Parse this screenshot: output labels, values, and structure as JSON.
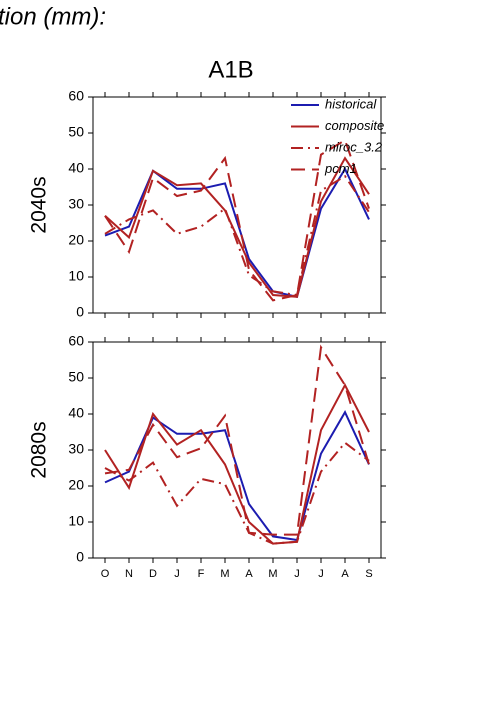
{
  "header": "tion (mm):",
  "chart_data": [
    {
      "type": "line",
      "title": "A1B",
      "ylabel": "2040s",
      "ylim": [
        0,
        60
      ],
      "yticks": [
        0,
        10,
        20,
        30,
        40,
        50,
        60
      ],
      "legend": "upper right",
      "series": [
        {
          "name": "historical",
          "color": "#1c1cb0",
          "dash": "solid",
          "values": [
            21.5,
            24,
            39.5,
            34.5,
            34.5,
            36,
            15,
            6,
            4.5,
            29,
            40,
            26
          ]
        },
        {
          "name": "composite",
          "color": "#b22222",
          "dash": "solid",
          "values": [
            27,
            21,
            39.5,
            35.5,
            36,
            28.5,
            14,
            5,
            4.5,
            31,
            43,
            33
          ]
        },
        {
          "name": "miroc_3.2",
          "color": "#b22222",
          "dash": "dashdot",
          "values": [
            22,
            26,
            28.5,
            22,
            24,
            29,
            10.5,
            6,
            5,
            34,
            38,
            28
          ]
        },
        {
          "name": "pcm1",
          "color": "#b22222",
          "dash": "dash",
          "values": [
            27,
            17,
            37.5,
            32.5,
            34,
            43,
            12,
            3.5,
            5,
            44,
            48,
            29
          ]
        }
      ]
    },
    {
      "type": "line",
      "ylabel": "2080s",
      "categories": [
        "O",
        "N",
        "D",
        "J",
        "F",
        "M",
        "A",
        "M",
        "J",
        "J",
        "A",
        "S"
      ],
      "ylim": [
        0,
        60
      ],
      "yticks": [
        0,
        10,
        20,
        30,
        40,
        50,
        60
      ],
      "series": [
        {
          "color": "#1c1cb0",
          "dash": "solid",
          "values": [
            21,
            24,
            39,
            34.5,
            34.5,
            35.5,
            15,
            6,
            5,
            29,
            40.5,
            26
          ]
        },
        {
          "color": "#b22222",
          "dash": "solid",
          "values": [
            30,
            19.5,
            40,
            31.5,
            35.5,
            26,
            10,
            4,
            4.5,
            35.5,
            48,
            35
          ]
        },
        {
          "color": "#b22222",
          "dash": "dashdot",
          "values": [
            25,
            21.5,
            26.5,
            14.5,
            22,
            20.5,
            7,
            4,
            4.5,
            24,
            32,
            27
          ]
        },
        {
          "color": "#b22222",
          "dash": "dash",
          "values": [
            23.5,
            24.5,
            37,
            28,
            30.5,
            39.5,
            7,
            6.5,
            6.5,
            58.5,
            48,
            26
          ]
        }
      ]
    }
  ]
}
